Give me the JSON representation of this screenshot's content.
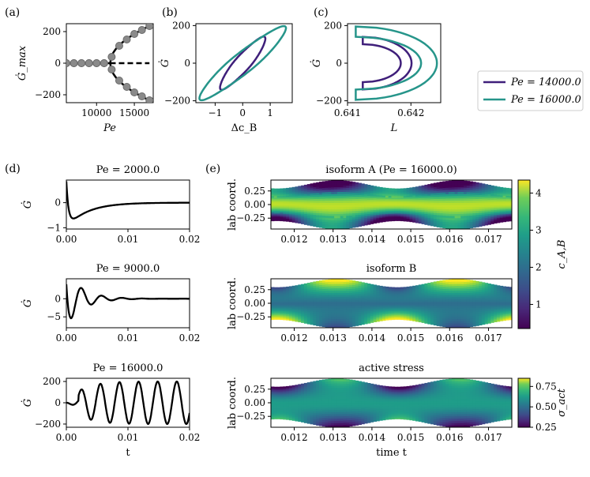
{
  "figure": {
    "panel_labels": [
      "(a)",
      "(b)",
      "(c)",
      "(d)",
      "(e)"
    ]
  },
  "colors": {
    "pe14000": "#3f1f7a",
    "pe16000": "#26958a",
    "black": "#000000",
    "marker": "#8a8a8a"
  },
  "legend": {
    "entries": [
      "Pe = 14000.0",
      "Pe = 16000.0"
    ]
  },
  "chart_data": [
    {
      "id": "a",
      "type": "scatter",
      "title": "",
      "xlabel": "Pe",
      "ylabel": "Ġ_max",
      "xlim": [
        6000,
        17500
      ],
      "ylim": [
        -250,
        250
      ],
      "xticks": [
        10000,
        15000
      ],
      "xtick_labels": [
        "10000",
        "15000"
      ],
      "yticks": [
        -200,
        0,
        200
      ],
      "ytick_labels": [
        "−200",
        "0",
        "200"
      ],
      "markers_x": [
        6000,
        7000,
        8000,
        9000,
        10000,
        11000,
        12000,
        13000,
        14000,
        15000,
        16000,
        17000
      ],
      "markers_y": [
        0,
        0,
        0,
        0,
        0,
        0,
        40,
        110,
        150,
        185,
        210,
        235
      ],
      "markers_y_neg": [
        0,
        0,
        0,
        0,
        0,
        0,
        -40,
        -110,
        -150,
        -185,
        -210,
        -235
      ],
      "stable_branch": {
        "x": [
          6000,
          11800
        ],
        "y": [
          0,
          0
        ]
      },
      "unstable_branch_dashed": {
        "x": [
          11800,
          17000
        ],
        "y": [
          0,
          0
        ]
      },
      "hopf_point": 11800
    },
    {
      "id": "b",
      "type": "line",
      "xlabel": "Δc_B",
      "ylabel": "Ġ",
      "xlim": [
        -1.7,
        1.8
      ],
      "ylim": [
        -210,
        210
      ],
      "xticks": [
        -1,
        0,
        1
      ],
      "xtick_labels": [
        "−1",
        "0",
        "1"
      ],
      "yticks": [
        -200,
        0,
        200
      ],
      "ytick_labels": [
        "−200",
        "0",
        "200"
      ],
      "series": [
        {
          "name": "Pe = 14000.0",
          "shape": "loop",
          "center": [
            0,
            0
          ],
          "x_amp": 0.8,
          "y_amp": 140,
          "width": 0.22
        },
        {
          "name": "Pe = 16000.0",
          "shape": "loop",
          "center": [
            0,
            0
          ],
          "x_amp": 1.55,
          "y_amp": 195,
          "width": 0.3
        }
      ]
    },
    {
      "id": "c",
      "type": "line",
      "xlabel": "L",
      "ylabel": "Ġ",
      "xlim": [
        0.641,
        0.64247
      ],
      "ylim": [
        -210,
        210
      ],
      "xticks": [
        0.641,
        0.642
      ],
      "xtick_labels": [
        "0.641",
        "0.642"
      ],
      "yticks": [
        -200,
        0,
        200
      ],
      "ytick_labels": [
        "−200",
        "0",
        "200"
      ],
      "series": [
        {
          "name": "Pe = 14000.0",
          "shape": "crescent",
          "x_left": 0.64124,
          "x_right": 0.64201,
          "y_amp": 140,
          "inner_offset": 0.00017
        },
        {
          "name": "Pe = 16000.0",
          "shape": "crescent",
          "x_left": 0.64113,
          "x_right": 0.64241,
          "y_amp": 195,
          "inner_offset": 0.00025
        }
      ]
    },
    {
      "id": "d1",
      "type": "line",
      "title": "Pe = 2000.0",
      "xlabel": "",
      "ylabel": "Ġ",
      "xlim": [
        0,
        0.02
      ],
      "ylim": [
        -1.05,
        0.9
      ],
      "xticks": [
        0.0,
        0.01,
        0.02
      ],
      "xtick_labels": [
        "0.00",
        "0.01",
        "0.02"
      ],
      "yticks": [
        -1,
        0
      ],
      "ytick_labels": [
        "−1",
        "0"
      ],
      "series": [
        {
          "name": "damped",
          "kind": "overdamped",
          "amp": 1.0,
          "decay": 300
        }
      ]
    },
    {
      "id": "d2",
      "type": "line",
      "title": "Pe = 9000.0",
      "xlabel": "",
      "ylabel": "Ġ",
      "xlim": [
        0,
        0.02
      ],
      "ylim": [
        -8,
        5.5
      ],
      "xticks": [
        0.0,
        0.01,
        0.02
      ],
      "xtick_labels": [
        "0.00",
        "0.01",
        "0.02"
      ],
      "yticks": [
        -5,
        0
      ],
      "ytick_labels": [
        "−5",
        "0"
      ],
      "series": [
        {
          "name": "damped",
          "kind": "damped_osc",
          "amp": 7.5,
          "decay": 380,
          "period": 0.0033
        }
      ]
    },
    {
      "id": "d3",
      "type": "line",
      "title": "Pe = 16000.0",
      "xlabel": "t",
      "ylabel": "Ġ",
      "xlim": [
        0,
        0.02
      ],
      "ylim": [
        -230,
        230
      ],
      "xticks": [
        0.0,
        0.01,
        0.02
      ],
      "xtick_labels": [
        "0.00",
        "0.01",
        "0.02"
      ],
      "yticks": [
        -200,
        0,
        200
      ],
      "ytick_labels": [
        "−200",
        "0",
        "200"
      ],
      "series": [
        {
          "name": "growing",
          "kind": "growing_osc",
          "amp": 200,
          "growth_tau": 0.0025,
          "period": 0.0031
        }
      ]
    },
    {
      "id": "e1",
      "type": "heatmap",
      "title": "isoform A (Pe = 16000.0)",
      "ylabel": "lab coord.",
      "xlim": [
        0.0114,
        0.0176
      ],
      "ylim": [
        -0.45,
        0.45
      ],
      "xticks": [
        0.012,
        0.013,
        0.014,
        0.015,
        0.016,
        0.017
      ],
      "xtick_labels": [
        "0.012",
        "0.013",
        "0.014",
        "0.015",
        "0.016",
        "0.017"
      ],
      "yticks": [
        0.25,
        0.0,
        -0.25
      ],
      "ytick_labels": [
        "0.25",
        "0.00",
        "−0.25"
      ],
      "field": "A"
    },
    {
      "id": "e2",
      "type": "heatmap",
      "title": "isoform B",
      "ylabel": "lab coord.",
      "xlim": [
        0.0114,
        0.0176
      ],
      "ylim": [
        -0.45,
        0.45
      ],
      "xticks": [
        0.012,
        0.013,
        0.014,
        0.015,
        0.016,
        0.017
      ],
      "xtick_labels": [
        "0.012",
        "0.013",
        "0.014",
        "0.015",
        "0.016",
        "0.017"
      ],
      "yticks": [
        0.25,
        0.0,
        -0.25
      ],
      "ytick_labels": [
        "0.25",
        "0.00",
        "−0.25"
      ],
      "field": "B"
    },
    {
      "id": "e3",
      "type": "heatmap",
      "title": "active stress",
      "xlabel": "time t",
      "ylabel": "lab coord.",
      "xlim": [
        0.0114,
        0.0176
      ],
      "ylim": [
        -0.45,
        0.45
      ],
      "xticks": [
        0.012,
        0.013,
        0.014,
        0.015,
        0.016,
        0.017
      ],
      "xtick_labels": [
        "0.012",
        "0.013",
        "0.014",
        "0.015",
        "0.016",
        "0.017"
      ],
      "yticks": [
        0.25,
        0.0,
        -0.25
      ],
      "ytick_labels": [
        "0.25",
        "0.00",
        "−0.25"
      ],
      "field": "S",
      "domain_half_width": 0.37,
      "domain_modulation": 0.075,
      "period": 0.0031,
      "phase_t": 0.0131
    },
    {
      "id": "cb1",
      "type": "colorbar",
      "label": "c_A,B",
      "range": [
        0.35,
        4.35
      ],
      "ticks": [
        1,
        2,
        3,
        4
      ],
      "tick_labels": [
        "1",
        "2",
        "3",
        "4"
      ],
      "colormap": "viridis"
    },
    {
      "id": "cb2",
      "type": "colorbar",
      "label": "σ_act",
      "range": [
        0.25,
        0.85
      ],
      "ticks": [
        0.25,
        0.5,
        0.75
      ],
      "tick_labels": [
        "0.25",
        "0.50",
        "0.75"
      ],
      "colormap": "viridis"
    }
  ]
}
